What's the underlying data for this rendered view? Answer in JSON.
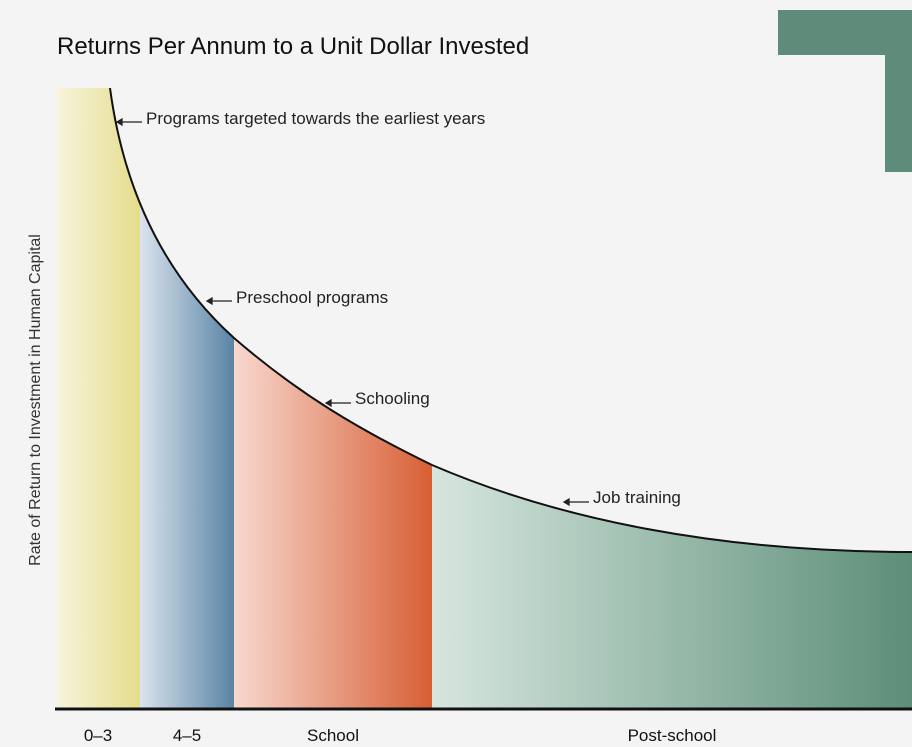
{
  "title": "Returns Per Annum to a Unit Dollar Invested",
  "y_axis_label": "Rate of Return to Investment in Human Capital",
  "annotations": [
    "Programs targeted towards the earliest years",
    "Preschool programs",
    "Schooling",
    "Job training"
  ],
  "segments": [
    "0–3",
    "4–5",
    "School",
    "Post-school"
  ]
}
